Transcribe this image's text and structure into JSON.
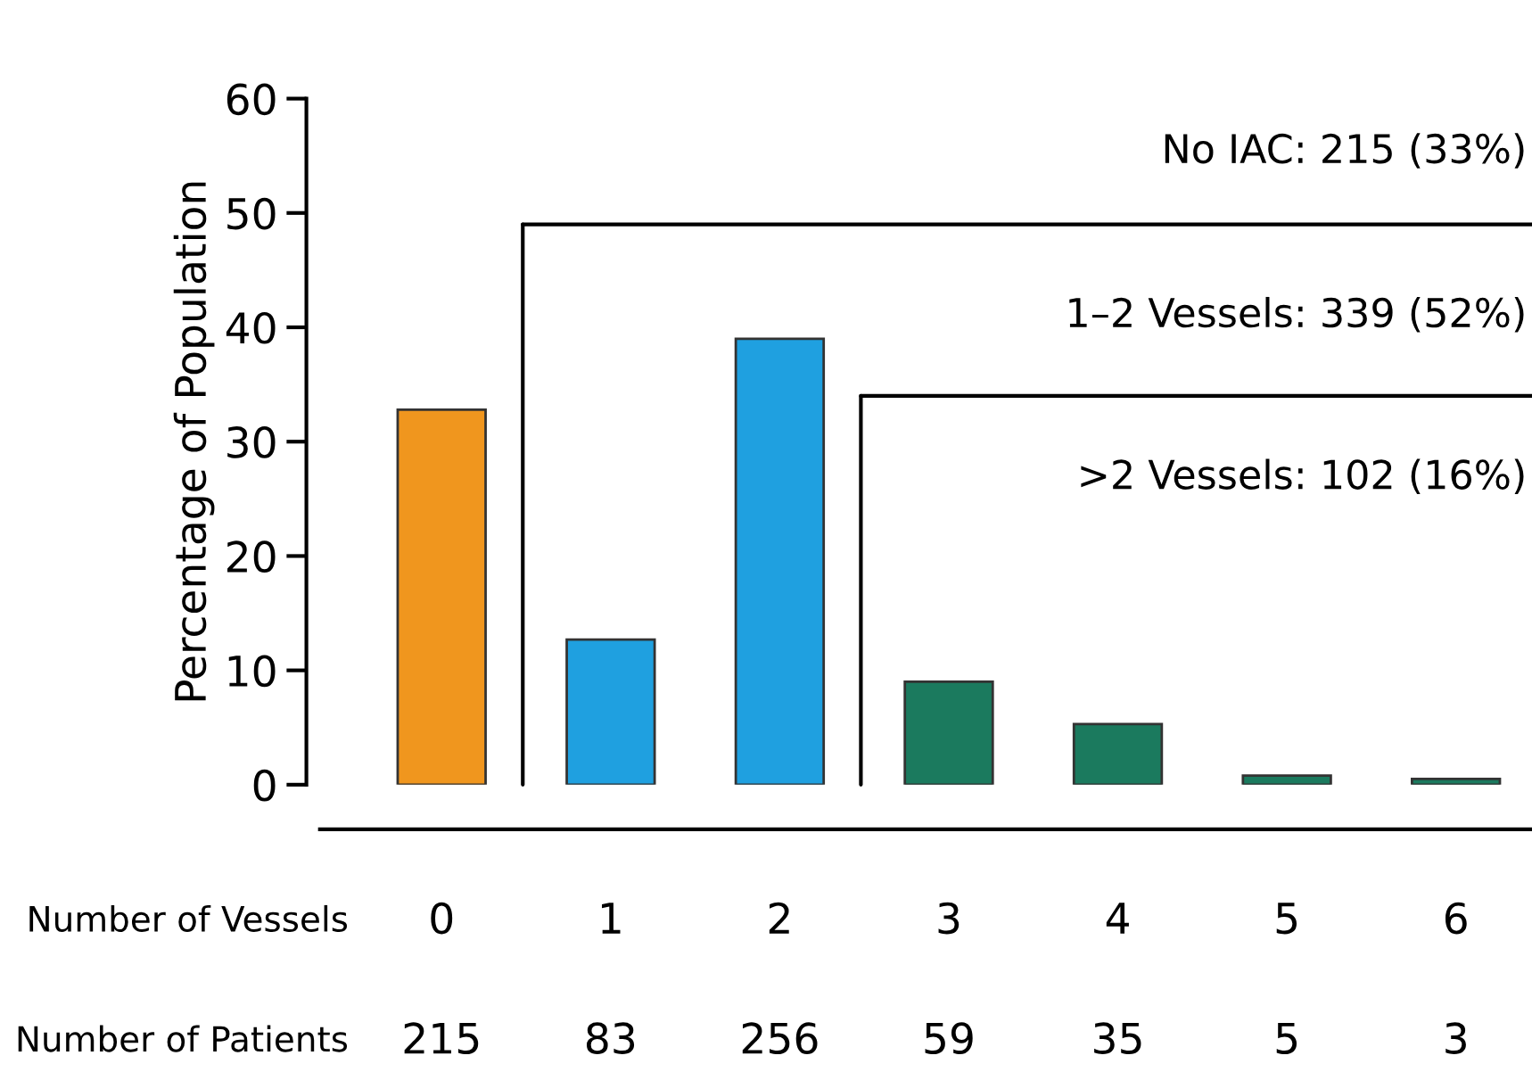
{
  "chart_data": {
    "type": "bar",
    "ylabel": "Percentage of Population",
    "xlabel": "Number of Vessels",
    "categories": [
      "0",
      "1",
      "2",
      "3",
      "4",
      "5",
      "6"
    ],
    "values": [
      32.8,
      12.7,
      39.0,
      9.0,
      5.3,
      0.8,
      0.5
    ],
    "colors": [
      "#f0961e",
      "#1fa0e0",
      "#1fa0e0",
      "#1b7a5e",
      "#1b7a5e",
      "#1b7a5e",
      "#1b7a5e"
    ],
    "ylim": [
      0,
      60
    ],
    "yticks": [
      0,
      10,
      20,
      30,
      40,
      50,
      60
    ],
    "grid": false,
    "legend": false,
    "ref_lines": [
      {
        "axis": "y",
        "value": 49,
        "color": "#000000"
      },
      {
        "axis": "y",
        "value": 34,
        "color": "#000000"
      }
    ],
    "annotations": [
      "No IAC: 215 (33%)",
      "1–2 Vessels: 339 (52%)",
      ">2 Vessels: 102 (16%)",
      "Number of Patients",
      "215",
      "83",
      "256",
      "59",
      "35",
      "5",
      "3"
    ]
  }
}
